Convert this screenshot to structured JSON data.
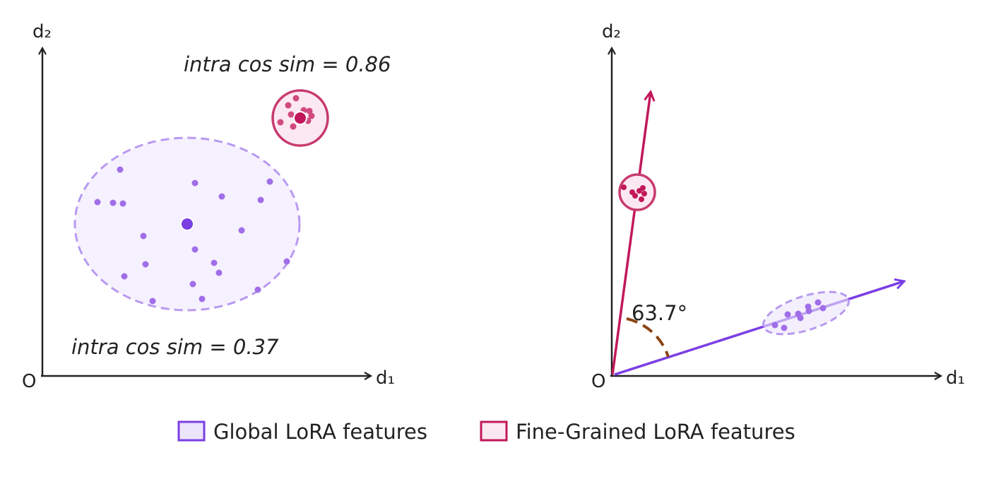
{
  "colors": {
    "axis": "#222222",
    "global": "#7b3fe4",
    "global_light": "#a97fef",
    "global_fill": "#f6f1fe",
    "global_legend_fill": "#ece4fc",
    "fine": "#c2185b",
    "fine_light": "#d04a7f",
    "fine_fill": "#fce8f1",
    "angle_arc": "#8b4513"
  },
  "left_panel": {
    "y_axis_label": "d₂",
    "x_axis_label": "d₁",
    "origin_label": "O",
    "fine_annotation": "intra cos sim = 0.86",
    "global_annotation": "intra cos sim = 0.37"
  },
  "right_panel": {
    "y_axis_label": "d₂",
    "x_axis_label": "d₁",
    "origin_label": "O",
    "angle_label": "63.7°"
  },
  "legend": {
    "global_label": "Global LoRA features",
    "fine_label": "Fine-Grained LoRA features"
  }
}
